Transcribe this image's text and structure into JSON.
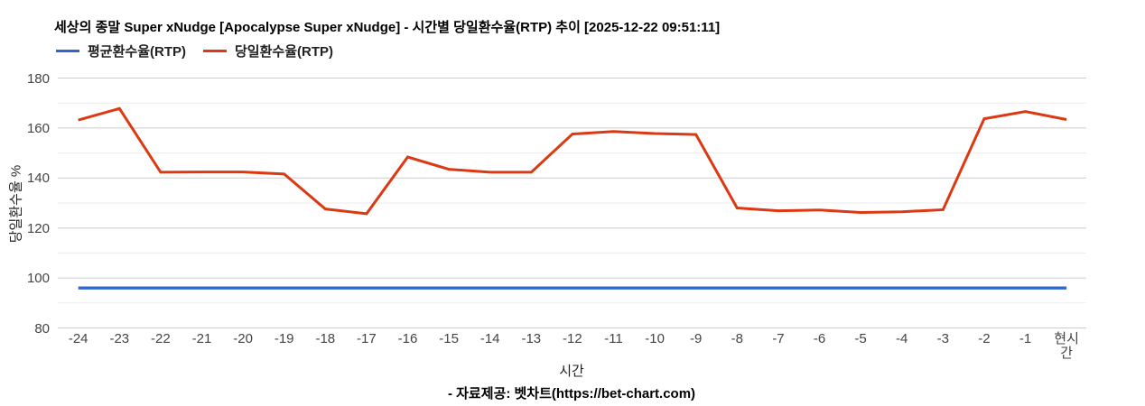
{
  "header": {
    "title": "세상의 종말 Super xNudge [Apocalypse Super xNudge] - 시간별 당일환수율(RTP) 추이 [2025-12-22 09:51:11]"
  },
  "legend": [
    {
      "label": "평균환수율(RTP)",
      "color": "#3366cc"
    },
    {
      "label": "당일환수율(RTP)",
      "color": "#dc3912"
    }
  ],
  "chart_data": {
    "type": "line",
    "categories": [
      "-24",
      "-23",
      "-22",
      "-21",
      "-20",
      "-19",
      "-18",
      "-17",
      "-16",
      "-15",
      "-14",
      "-13",
      "-12",
      "-11",
      "-10",
      "-9",
      "-8",
      "-7",
      "-6",
      "-5",
      "-4",
      "-3",
      "-2",
      "-1",
      "현시간"
    ],
    "series": [
      {
        "name": "평균환수율(RTP)",
        "color": "#3366cc",
        "width": 3.4,
        "values": [
          96,
          96,
          96,
          96,
          96,
          96,
          96,
          96,
          96,
          96,
          96,
          96,
          96,
          96,
          96,
          96,
          96,
          96,
          96,
          96,
          96,
          96,
          96,
          96,
          96
        ]
      },
      {
        "name": "당일환수율(RTP)",
        "color": "#dc3912",
        "width": 3,
        "values": [
          163.2,
          167.8,
          142.3,
          142.4,
          142.4,
          141.6,
          127.6,
          125.7,
          148.4,
          143.5,
          142.3,
          142.3,
          157.6,
          158.6,
          157.8,
          157.4,
          128.0,
          126.9,
          127.2,
          126.2,
          126.5,
          127.3,
          163.7,
          166.6,
          163.4
        ]
      }
    ],
    "title": "세상의 종말 Super xNudge [Apocalypse Super xNudge] - 시간별 당일환수율(RTP) 추이 [2025-12-22 09:51:11]",
    "xlabel": "시간",
    "ylabel": "당일환수율 %",
    "ylim": [
      80,
      180
    ],
    "y_major_ticks": [
      80,
      100,
      120,
      140,
      160,
      180
    ],
    "y_minor_ticks": [
      90,
      110,
      130,
      150,
      170
    ],
    "grid": "horizontal-only",
    "legend_position": "top-left",
    "colors": {
      "major_gridline": "#cccccc",
      "minor_gridline": "#ebebeb",
      "tick_text": "#444444"
    }
  },
  "footer": {
    "source": "- 자료제공: 벳차트(https://bet-chart.com)"
  }
}
